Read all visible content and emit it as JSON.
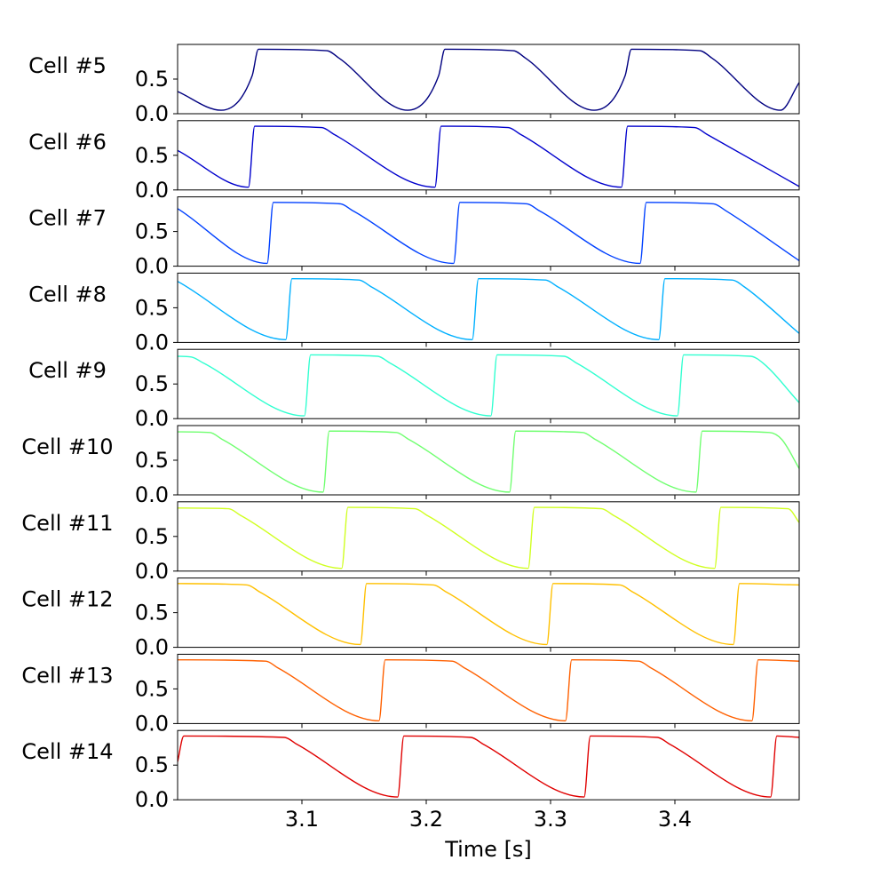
{
  "chart_data": {
    "type": "line",
    "xlabel": "Time [s]",
    "xlim": [
      3.0,
      3.5
    ],
    "x_ticks": [
      3.1,
      3.2,
      3.3,
      3.4
    ],
    "x_tick_labels": [
      "3.1",
      "3.2",
      "3.3",
      "3.4"
    ],
    "ylim": [
      0.0,
      1.0
    ],
    "y_ticks": [
      0.0,
      0.5
    ],
    "y_tick_labels": [
      "0.0",
      "0.5"
    ],
    "grid": false,
    "legend": "none",
    "period_s": 0.15,
    "series": [
      {
        "name": "Cell #5",
        "color": "#000080",
        "x": [
          3.0,
          3.035,
          3.06,
          3.065,
          3.12,
          3.13,
          3.185,
          3.21,
          3.215,
          3.27,
          3.28,
          3.335,
          3.36,
          3.365,
          3.42,
          3.43,
          3.485,
          3.5
        ],
        "y": [
          0.32,
          0.05,
          0.55,
          0.93,
          0.91,
          0.8,
          0.05,
          0.55,
          0.93,
          0.91,
          0.8,
          0.05,
          0.55,
          0.93,
          0.91,
          0.8,
          0.05,
          0.45
        ]
      },
      {
        "name": "Cell #6",
        "color": "#0000cd",
        "x": [
          3.0,
          3.057,
          3.062,
          3.116,
          3.126,
          3.207,
          3.212,
          3.266,
          3.276,
          3.357,
          3.362,
          3.416,
          3.426,
          3.5
        ],
        "y": [
          0.57,
          0.04,
          0.92,
          0.9,
          0.8,
          0.04,
          0.92,
          0.9,
          0.8,
          0.04,
          0.92,
          0.9,
          0.8,
          0.05
        ]
      },
      {
        "name": "Cell #7",
        "color": "#0040ff",
        "x": [
          3.0,
          3.072,
          3.077,
          3.131,
          3.141,
          3.222,
          3.227,
          3.281,
          3.291,
          3.372,
          3.377,
          3.431,
          3.441,
          3.5
        ],
        "y": [
          0.83,
          0.04,
          0.92,
          0.9,
          0.8,
          0.04,
          0.92,
          0.9,
          0.8,
          0.04,
          0.92,
          0.9,
          0.8,
          0.08
        ]
      },
      {
        "name": "Cell #8",
        "color": "#00b0ff",
        "x": [
          3.0,
          3.087,
          3.092,
          3.146,
          3.156,
          3.237,
          3.242,
          3.296,
          3.306,
          3.387,
          3.392,
          3.446,
          3.456,
          3.5
        ],
        "y": [
          0.88,
          0.04,
          0.92,
          0.9,
          0.8,
          0.04,
          0.92,
          0.9,
          0.8,
          0.04,
          0.92,
          0.9,
          0.8,
          0.13
        ]
      },
      {
        "name": "Cell #9",
        "color": "#30ffd0",
        "x": [
          3.0,
          3.011,
          3.021,
          3.102,
          3.107,
          3.161,
          3.171,
          3.252,
          3.257,
          3.311,
          3.321,
          3.402,
          3.407,
          3.461,
          3.471,
          3.5
        ],
        "y": [
          0.9,
          0.89,
          0.8,
          0.04,
          0.92,
          0.9,
          0.8,
          0.04,
          0.92,
          0.9,
          0.8,
          0.04,
          0.92,
          0.9,
          0.8,
          0.23
        ]
      },
      {
        "name": "Cell #10",
        "color": "#70ff70",
        "x": [
          3.0,
          3.026,
          3.036,
          3.117,
          3.122,
          3.176,
          3.186,
          3.267,
          3.272,
          3.326,
          3.336,
          3.417,
          3.422,
          3.476,
          3.486,
          3.5
        ],
        "y": [
          0.91,
          0.9,
          0.8,
          0.04,
          0.92,
          0.9,
          0.8,
          0.04,
          0.92,
          0.9,
          0.8,
          0.04,
          0.92,
          0.9,
          0.8,
          0.38
        ]
      },
      {
        "name": "Cell #11",
        "color": "#d0ff20",
        "x": [
          3.0,
          3.041,
          3.051,
          3.132,
          3.137,
          3.191,
          3.201,
          3.282,
          3.287,
          3.341,
          3.351,
          3.432,
          3.437,
          3.491,
          3.5
        ],
        "y": [
          0.91,
          0.9,
          0.8,
          0.04,
          0.92,
          0.9,
          0.8,
          0.04,
          0.92,
          0.9,
          0.8,
          0.04,
          0.92,
          0.9,
          0.7
        ]
      },
      {
        "name": "Cell #12",
        "color": "#ffc000",
        "x": [
          3.0,
          3.056,
          3.066,
          3.147,
          3.152,
          3.206,
          3.216,
          3.297,
          3.302,
          3.356,
          3.366,
          3.447,
          3.452,
          3.5
        ],
        "y": [
          0.92,
          0.9,
          0.8,
          0.04,
          0.92,
          0.9,
          0.8,
          0.04,
          0.92,
          0.9,
          0.8,
          0.04,
          0.92,
          0.9
        ]
      },
      {
        "name": "Cell #13",
        "color": "#ff6000",
        "x": [
          3.0,
          3.071,
          3.081,
          3.162,
          3.167,
          3.221,
          3.231,
          3.312,
          3.317,
          3.371,
          3.381,
          3.462,
          3.467,
          3.5
        ],
        "y": [
          0.92,
          0.9,
          0.8,
          0.04,
          0.92,
          0.9,
          0.8,
          0.04,
          0.92,
          0.9,
          0.8,
          0.04,
          0.92,
          0.9
        ]
      },
      {
        "name": "Cell #14",
        "color": "#e00000",
        "x": [
          3.0,
          3.005,
          3.086,
          3.096,
          3.177,
          3.182,
          3.236,
          3.246,
          3.327,
          3.332,
          3.386,
          3.396,
          3.477,
          3.482,
          3.5
        ],
        "y": [
          0.55,
          0.92,
          0.9,
          0.8,
          0.04,
          0.92,
          0.9,
          0.8,
          0.04,
          0.92,
          0.9,
          0.8,
          0.04,
          0.92,
          0.9
        ]
      }
    ]
  }
}
